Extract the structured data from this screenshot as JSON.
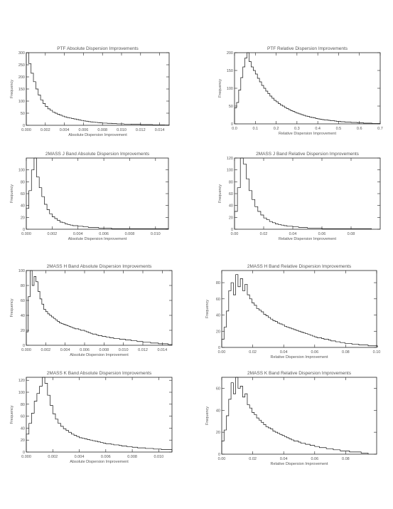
{
  "chart_data": [
    {
      "type": "histogram",
      "title": "PTF Absolute Dispersion Improvements",
      "xlabel": "Absolute Dispersion Improvement",
      "ylabel": "Frequency",
      "xlim": [
        0,
        0.015
      ],
      "ylim": [
        0,
        300
      ],
      "xticks": [
        0.0,
        0.002,
        0.004,
        0.006,
        0.008,
        0.01,
        0.012,
        0.014
      ],
      "xtick_labels": [
        "0.000",
        "0.002",
        "0.004",
        "0.006",
        "0.008",
        "0.010",
        "0.012",
        "0.014"
      ],
      "yticks": [
        0,
        50,
        100,
        150,
        200,
        250,
        300
      ],
      "ytick_labels": [
        "0",
        "50",
        "100",
        "150",
        "200",
        "250",
        "300"
      ],
      "bin_start": 0,
      "bin_width": 0.00025,
      "counts": [
        300,
        255,
        215,
        180,
        150,
        125,
        105,
        90,
        78,
        68,
        62,
        55,
        50,
        46,
        42,
        38,
        35,
        32,
        30,
        28,
        26,
        24,
        22,
        20,
        18,
        17,
        15,
        14,
        13,
        12,
        11,
        10,
        9,
        9,
        8,
        8,
        7,
        7,
        6,
        6,
        6,
        5,
        5,
        5,
        4,
        4,
        4,
        4,
        3,
        3,
        3,
        3,
        3,
        2,
        2,
        2,
        2,
        2,
        1,
        1
      ]
    },
    {
      "type": "histogram",
      "title": "PTF Relative Dispersion Improvements",
      "xlabel": "Relative Dispersion Improvement",
      "ylabel": "Frequency",
      "xlim": [
        0,
        0.7
      ],
      "ylim": [
        0,
        200
      ],
      "xticks": [
        0.0,
        0.1,
        0.2,
        0.3,
        0.4,
        0.5,
        0.6,
        0.7
      ],
      "xtick_labels": [
        "0.0",
        "0.1",
        "0.2",
        "0.3",
        "0.4",
        "0.5",
        "0.6",
        "0.7"
      ],
      "yticks": [
        0,
        50,
        100,
        150,
        200
      ],
      "ytick_labels": [
        "0",
        "50",
        "100",
        "150",
        "200"
      ],
      "bin_start": 0,
      "bin_width": 0.01,
      "counts": [
        45,
        60,
        95,
        130,
        160,
        185,
        200,
        175,
        160,
        150,
        140,
        128,
        118,
        108,
        100,
        92,
        85,
        78,
        72,
        66,
        62,
        57,
        53,
        50,
        46,
        43,
        40,
        37,
        35,
        32,
        30,
        28,
        26,
        24,
        22,
        21,
        19,
        18,
        17,
        15,
        14,
        13,
        12,
        11,
        11,
        10,
        9,
        9,
        8,
        7,
        7,
        6,
        6,
        5,
        5,
        5,
        4,
        4,
        4,
        3,
        3,
        3,
        2,
        2,
        2,
        2,
        1,
        1,
        1,
        1
      ]
    },
    {
      "type": "histogram",
      "title": "2MASS J Band Absolute Dispersion Improvements",
      "xlabel": "Absolute Dispersion Improvement",
      "ylabel": "Frequency",
      "xlim": [
        0,
        0.011
      ],
      "ylim": [
        0,
        120
      ],
      "xticks": [
        0.0,
        0.002,
        0.004,
        0.006,
        0.008,
        0.01
      ],
      "xtick_labels": [
        "0.000",
        "0.002",
        "0.004",
        "0.006",
        "0.008",
        "0.010"
      ],
      "yticks": [
        0,
        20,
        40,
        60,
        80,
        100
      ],
      "ytick_labels": [
        "0",
        "20",
        "40",
        "60",
        "80",
        "100"
      ],
      "bin_start": 0,
      "bin_width": 0.0002,
      "counts": [
        35,
        65,
        100,
        120,
        88,
        70,
        55,
        42,
        33,
        26,
        21,
        18,
        15,
        12,
        11,
        9,
        8,
        7,
        6,
        6,
        5,
        5,
        4,
        4,
        3,
        3,
        3,
        3,
        2,
        2,
        2,
        2,
        2,
        1,
        1,
        1,
        1,
        1,
        1,
        1,
        1,
        1,
        1,
        1,
        1,
        1,
        1,
        1,
        1,
        1,
        1,
        1,
        1,
        1,
        1
      ]
    },
    {
      "type": "histogram",
      "title": "2MASS J Band Relative Dispersion Improvements",
      "xlabel": "Relative Dispersion Improvement",
      "ylabel": "Frequency",
      "xlim": [
        0,
        0.1
      ],
      "ylim": [
        0,
        120
      ],
      "xticks": [
        0.0,
        0.02,
        0.04,
        0.06,
        0.08
      ],
      "xtick_labels": [
        "0.00",
        "0.02",
        "0.04",
        "0.06",
        "0.08"
      ],
      "yticks": [
        0,
        20,
        40,
        60,
        80,
        100,
        120
      ],
      "ytick_labels": [
        "0",
        "20",
        "40",
        "60",
        "80",
        "100",
        "120"
      ],
      "bin_start": 0,
      "bin_width": 0.002,
      "counts": [
        30,
        70,
        120,
        110,
        85,
        65,
        50,
        38,
        30,
        24,
        19,
        16,
        13,
        11,
        9,
        8,
        7,
        6,
        5,
        5,
        4,
        4,
        3,
        3,
        3,
        2,
        2,
        2,
        2,
        2,
        1,
        1,
        1,
        1,
        1,
        1,
        1,
        1,
        1,
        1,
        1,
        1,
        1,
        1,
        1,
        1,
        1
      ]
    },
    {
      "type": "histogram",
      "title": "2MASS H Band Absolute Dispersion Improvements",
      "xlabel": "Absolute Dispersion Improvement",
      "ylabel": "Frequency",
      "xlim": [
        0,
        0.015
      ],
      "ylim": [
        0,
        100
      ],
      "xticks": [
        0.0,
        0.002,
        0.004,
        0.006,
        0.008,
        0.01,
        0.012,
        0.014
      ],
      "xtick_labels": [
        "0.000",
        "0.002",
        "0.004",
        "0.006",
        "0.008",
        "0.010",
        "0.012",
        "0.014"
      ],
      "yticks": [
        0,
        20,
        40,
        60,
        80,
        100
      ],
      "ytick_labels": [
        "0",
        "20",
        "40",
        "60",
        "80",
        "100"
      ],
      "bin_start": 0,
      "bin_width": 0.0002,
      "counts": [
        18,
        65,
        100,
        80,
        92,
        85,
        72,
        62,
        55,
        48,
        45,
        42,
        40,
        38,
        36,
        34,
        32,
        30,
        29,
        28,
        27,
        26,
        25,
        24,
        23,
        22,
        22,
        21,
        20,
        20,
        19,
        18,
        17,
        16,
        15,
        15,
        14,
        13,
        13,
        12,
        12,
        11,
        11,
        10,
        10,
        9,
        9,
        9,
        8,
        8,
        8,
        7,
        7,
        7,
        6,
        6,
        6,
        5,
        5,
        5,
        4,
        4,
        4,
        4,
        3,
        3,
        3,
        3,
        2,
        2,
        2,
        2,
        2,
        1,
        1
      ]
    },
    {
      "type": "histogram",
      "title": "2MASS H Band Relative Dispersion Improvements",
      "xlabel": "Relative Dispersion Improvement",
      "ylabel": "Frequency",
      "xlim": [
        0,
        0.1
      ],
      "ylim": [
        0,
        95
      ],
      "xticks": [
        0.0,
        0.02,
        0.04,
        0.06,
        0.08,
        0.1
      ],
      "xtick_labels": [
        "0.00",
        "0.02",
        "0.04",
        "0.06",
        "0.08",
        "0.10"
      ],
      "yticks": [
        0,
        20,
        40,
        60,
        80
      ],
      "ytick_labels": [
        "0",
        "20",
        "40",
        "60",
        "80"
      ],
      "bin_start": 0,
      "bin_width": 0.0015,
      "counts": [
        10,
        25,
        45,
        70,
        80,
        65,
        90,
        75,
        85,
        70,
        78,
        65,
        60,
        55,
        52,
        48,
        46,
        44,
        41,
        39,
        37,
        35,
        33,
        32,
        30,
        29,
        28,
        26,
        25,
        24,
        23,
        22,
        21,
        20,
        19,
        18,
        17,
        16,
        15,
        14,
        13,
        12,
        12,
        11,
        10,
        10,
        9,
        8,
        8,
        7,
        7,
        6,
        6,
        5,
        5,
        5,
        4,
        4,
        4,
        3,
        3,
        3,
        3,
        2,
        2,
        2,
        2
      ]
    },
    {
      "type": "histogram",
      "title": "2MASS K Band Absolute Dispersion Improvements",
      "xlabel": "Absolute Dispersion Improvement",
      "ylabel": "Frequency",
      "xlim": [
        0,
        0.011
      ],
      "ylim": [
        0,
        125
      ],
      "xticks": [
        0.0,
        0.002,
        0.004,
        0.006,
        0.008,
        0.01
      ],
      "xtick_labels": [
        "0.000",
        "0.002",
        "0.004",
        "0.006",
        "0.008",
        "0.010"
      ],
      "yticks": [
        0,
        20,
        40,
        60,
        80,
        100,
        120
      ],
      "ytick_labels": [
        "0",
        "20",
        "40",
        "60",
        "80",
        "100",
        "120"
      ],
      "bin_start": 0,
      "bin_width": 0.0002,
      "counts": [
        30,
        48,
        65,
        85,
        98,
        110,
        125,
        115,
        95,
        78,
        64,
        55,
        48,
        43,
        39,
        36,
        33,
        30,
        28,
        26,
        24,
        23,
        22,
        21,
        20,
        19,
        18,
        17,
        16,
        15,
        14,
        14,
        13,
        12,
        12,
        11,
        10,
        10,
        9,
        9,
        8,
        8,
        7,
        7,
        7,
        6,
        6,
        6,
        5,
        5,
        5,
        4,
        4,
        4,
        4
      ]
    },
    {
      "type": "histogram",
      "title": "2MASS K Band Relative Dispersion Improvements",
      "xlabel": "Relative Dispersion Improvement",
      "ylabel": "Frequency",
      "xlim": [
        0,
        0.1
      ],
      "ylim": [
        0,
        70
      ],
      "xticks": [
        0.0,
        0.02,
        0.04,
        0.06,
        0.08
      ],
      "xtick_labels": [
        "0.00",
        "0.02",
        "0.04",
        "0.06",
        "0.08"
      ],
      "yticks": [
        0,
        20,
        40,
        60
      ],
      "ytick_labels": [
        "0",
        "20",
        "40",
        "60"
      ],
      "bin_start": 0,
      "bin_width": 0.0015,
      "counts": [
        12,
        22,
        35,
        50,
        65,
        55,
        70,
        60,
        62,
        52,
        55,
        45,
        42,
        38,
        36,
        33,
        31,
        29,
        27,
        25,
        24,
        23,
        21,
        20,
        19,
        18,
        17,
        16,
        15,
        14,
        13,
        12,
        12,
        11,
        10,
        10,
        9,
        9,
        8,
        8,
        7,
        7,
        6,
        6,
        6,
        5,
        5,
        5,
        4,
        4,
        4,
        3,
        3,
        3,
        3,
        2,
        2,
        2,
        2,
        2,
        1,
        1,
        1
      ]
    }
  ]
}
